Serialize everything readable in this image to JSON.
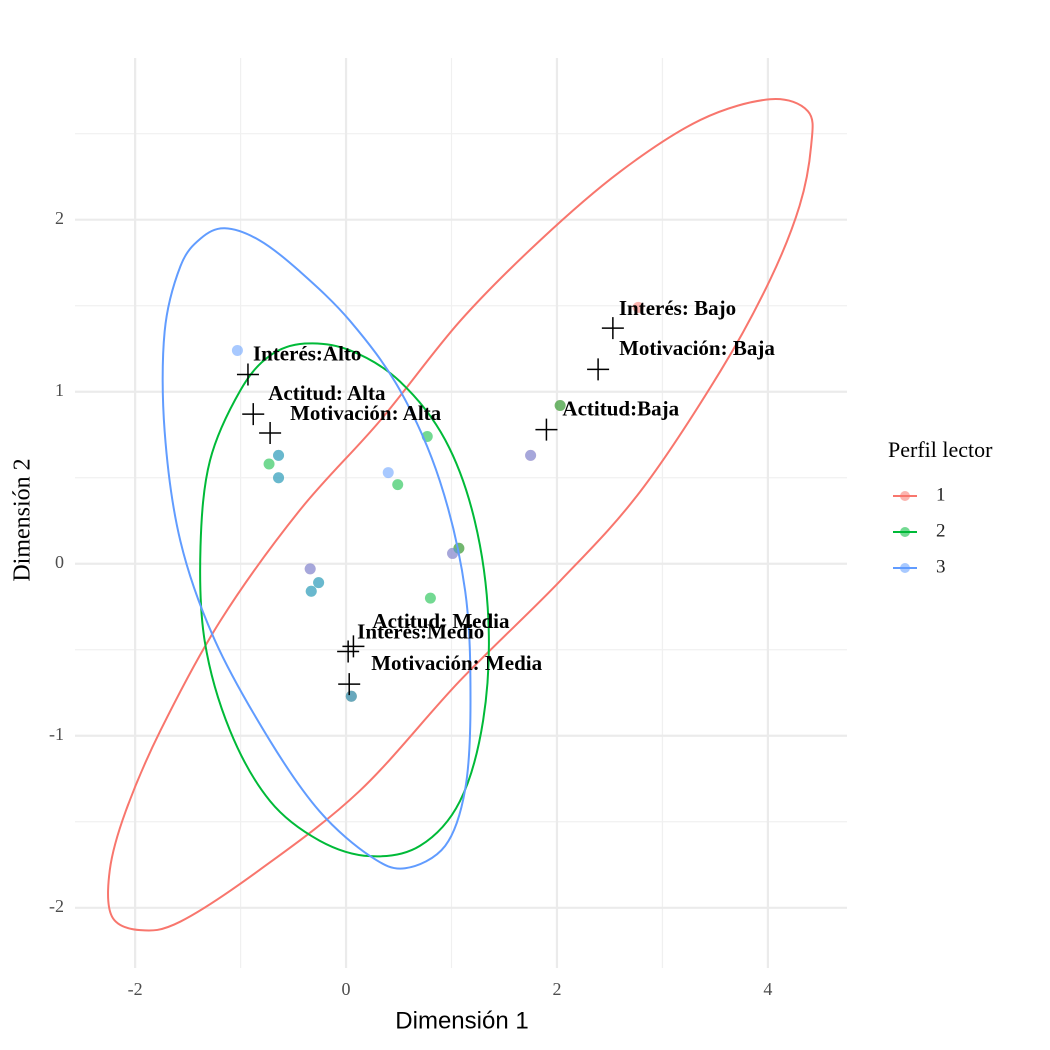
{
  "chart_data": {
    "type": "scatter",
    "xlabel": "Dimensión 1",
    "ylabel": "Dimensión  2",
    "xlim": [
      -2.57,
      4.75
    ],
    "ylim": [
      -2.35,
      2.94
    ],
    "xticks": [
      -2,
      0,
      2,
      4
    ],
    "yticks": [
      -2,
      -1,
      0,
      1,
      2
    ],
    "grid": true,
    "x_minor_grid": [
      -1,
      1,
      3
    ],
    "y_minor_grid": [
      -1.5,
      -0.5,
      0.5,
      1.5,
      2.5
    ],
    "legend_title": "Perfil lector",
    "legend_position": "right",
    "series": [
      {
        "name": "1",
        "color": "#F8766D",
        "x": [
          2.77,
          2.03,
          1.75,
          1.07,
          1.01,
          -0.34,
          0.05
        ],
        "y": [
          1.49,
          0.92,
          0.63,
          0.09,
          0.06,
          -0.03,
          -0.77
        ]
      },
      {
        "name": "2",
        "color": "#00BA38",
        "x": [
          2.03,
          -0.64,
          -0.73,
          -0.64,
          0.77,
          0.49,
          1.07,
          -0.26,
          -0.33,
          0.8,
          0.05
        ],
        "y": [
          0.92,
          0.63,
          0.58,
          0.5,
          0.74,
          0.46,
          0.09,
          -0.11,
          -0.16,
          -0.2,
          -0.77
        ]
      },
      {
        "name": "3",
        "color": "#619CFF",
        "x": [
          -1.03,
          1.75,
          -0.64,
          -0.64,
          0.4,
          1.01,
          -0.34,
          -0.26,
          -0.33,
          0.05
        ],
        "y": [
          1.24,
          0.63,
          0.63,
          0.5,
          0.53,
          0.06,
          -0.03,
          -0.11,
          -0.16,
          -0.77
        ]
      }
    ],
    "ellipses": [
      {
        "color": "#F8766D",
        "x": [
          4.02,
          4.38,
          4.41,
          4.3,
          4.02,
          3.55,
          2.79,
          2.03,
          1.08,
          0.13,
          -0.82,
          -1.57,
          -1.95,
          -2.22,
          -2.24,
          -2.09,
          -1.76,
          -1.19,
          -0.44,
          0.32,
          1.08,
          1.84,
          2.6,
          3.36
        ],
        "y": [
          2.7,
          2.63,
          2.43,
          2.08,
          1.65,
          1.12,
          0.42,
          -0.1,
          -0.68,
          -1.32,
          -1.78,
          -2.08,
          -2.13,
          -2.05,
          -1.78,
          -1.44,
          -0.97,
          -0.33,
          0.31,
          0.83,
          1.41,
          1.88,
          2.28,
          2.58
        ]
      },
      {
        "color": "#00BA38",
        "x": [
          -0.39,
          0.04,
          0.51,
          0.94,
          1.22,
          1.35,
          1.3,
          1.08,
          0.7,
          0.23,
          -0.25,
          -0.72,
          -1.1,
          -1.34,
          -1.38,
          -1.29,
          -1.0,
          -0.72
        ],
        "y": [
          1.28,
          1.24,
          1.06,
          0.72,
          0.25,
          -0.33,
          -0.91,
          -1.38,
          -1.64,
          -1.7,
          -1.61,
          -1.38,
          -0.97,
          -0.45,
          0.1,
          0.6,
          1.01,
          1.21
        ]
      },
      {
        "color": "#619CFF",
        "x": [
          -1.15,
          -0.82,
          -0.44,
          0.04,
          0.51,
          0.89,
          1.13,
          1.18,
          1.13,
          0.94,
          0.56,
          0.23,
          -0.25,
          -0.72,
          -1.24,
          -1.57,
          -1.72,
          -1.72,
          -1.57,
          -1.38
        ],
        "y": [
          1.95,
          1.88,
          1.7,
          1.41,
          1.01,
          0.48,
          -0.16,
          -0.8,
          -1.31,
          -1.64,
          -1.77,
          -1.7,
          -1.44,
          -1.03,
          -0.45,
          0.13,
          0.77,
          1.35,
          1.73,
          1.89
        ]
      }
    ],
    "category_points": {
      "labels": [
        "Interés:Alto",
        "Actitud: Alta",
        "Motivación: Alta",
        "Interés: Bajo",
        "Motivación: Baja",
        "Actitud:Baja",
        "Actitud: Media",
        "Interés:Medio",
        "Motivación: Media"
      ],
      "x": [
        -0.93,
        -0.88,
        -0.72,
        2.53,
        2.39,
        1.9,
        0.07,
        0.02,
        0.03
      ],
      "y": [
        1.1,
        0.87,
        0.76,
        1.37,
        1.13,
        0.78,
        -0.48,
        -0.51,
        -0.7
      ]
    }
  }
}
